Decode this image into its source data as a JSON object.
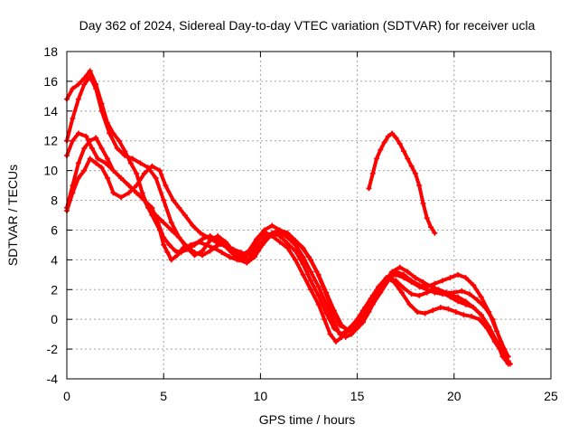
{
  "chart_data": {
    "type": "scatter",
    "title": "Day 362 of 2024, Sidereal Day-to-day VTEC variation (SDTVAR) for receiver ucla",
    "xlabel": "GPS time / hours",
    "ylabel": "SDTVAR / TECUs",
    "xlim": [
      0,
      25
    ],
    "ylim": [
      -4,
      18
    ],
    "xticks": [
      0,
      5,
      10,
      15,
      20,
      25
    ],
    "yticks": [
      -4,
      -2,
      0,
      2,
      4,
      6,
      8,
      10,
      12,
      14,
      16,
      18
    ],
    "grid": true,
    "marker": "+",
    "color": "#ff0000",
    "series": [
      {
        "name": "trace-1",
        "x": [
          0.0,
          0.3,
          0.6,
          0.9,
          1.2,
          1.5,
          1.8,
          2.1,
          2.4,
          2.8,
          3.2,
          3.6,
          4.0,
          4.4,
          4.8,
          5.0,
          5.2,
          5.4,
          5.7,
          6.0,
          6.4,
          6.8,
          7.2,
          7.6,
          8.0,
          8.4,
          8.8,
          9.2,
          9.6,
          10.0,
          10.3,
          10.6,
          11.0,
          11.4,
          11.8,
          12.2,
          12.6,
          13.0,
          13.3,
          13.6,
          13.9,
          14.2,
          14.5,
          14.8,
          15.1,
          15.4,
          15.8,
          16.2,
          16.6,
          17.0,
          17.4,
          17.8,
          18.2,
          18.6,
          19.0,
          19.4,
          19.8,
          20.2,
          20.6,
          21.0,
          21.4,
          21.8,
          22.2,
          22.5,
          22.8
        ],
        "y": [
          7.5,
          9.0,
          10.5,
          11.5,
          12.0,
          12.2,
          11.5,
          10.8,
          10.0,
          9.5,
          9.0,
          8.5,
          8.0,
          7.0,
          6.0,
          5.0,
          4.5,
          4.0,
          4.3,
          4.8,
          5.0,
          5.2,
          5.0,
          4.8,
          4.5,
          4.2,
          4.0,
          4.2,
          4.8,
          5.5,
          5.8,
          5.6,
          5.2,
          4.8,
          4.0,
          3.0,
          2.0,
          1.0,
          0.0,
          -1.0,
          -1.5,
          -1.2,
          -0.8,
          -0.5,
          0.0,
          0.5,
          1.2,
          2.0,
          2.8,
          3.0,
          2.8,
          2.5,
          2.2,
          2.0,
          1.8,
          1.7,
          1.6,
          1.5,
          1.2,
          0.8,
          0.3,
          -0.5,
          -1.5,
          -2.5,
          -3.0
        ]
      },
      {
        "name": "trace-2",
        "x": [
          0.0,
          0.3,
          0.6,
          1.0,
          1.3,
          1.6,
          2.0,
          2.4,
          2.8,
          3.2,
          3.6,
          4.0,
          4.4,
          4.7,
          5.0,
          5.3,
          5.6,
          5.9,
          6.2,
          6.6,
          7.0,
          7.4,
          7.8,
          8.2,
          8.6,
          9.0,
          9.4,
          9.8,
          10.2,
          10.6,
          11.0,
          11.4,
          11.8,
          12.2,
          12.6,
          13.0,
          13.4,
          13.8,
          14.1,
          14.4,
          14.7,
          15.0,
          15.3,
          15.6,
          16.0,
          16.4,
          16.8,
          17.2,
          17.6,
          18.0,
          18.4,
          18.8,
          19.2,
          19.6,
          20.0,
          20.4,
          20.8,
          21.2,
          21.6,
          22.0,
          22.4,
          22.8
        ],
        "y": [
          11.0,
          12.0,
          12.5,
          12.3,
          11.5,
          10.8,
          10.5,
          10.0,
          9.5,
          9.0,
          8.5,
          8.0,
          7.5,
          6.5,
          5.5,
          5.0,
          4.6,
          4.5,
          4.7,
          5.0,
          5.4,
          5.6,
          5.3,
          4.9,
          4.5,
          4.3,
          4.6,
          5.4,
          6.0,
          6.3,
          6.0,
          5.5,
          5.0,
          4.2,
          3.2,
          2.2,
          1.0,
          -0.2,
          -1.0,
          -1.2,
          -1.0,
          -0.6,
          -0.2,
          0.5,
          1.5,
          2.5,
          3.2,
          3.5,
          3.2,
          2.8,
          2.5,
          2.2,
          2.0,
          1.8,
          1.8,
          1.9,
          1.7,
          1.3,
          0.8,
          0.0,
          -1.5,
          -2.5
        ]
      },
      {
        "name": "trace-3",
        "x": [
          0.0,
          0.3,
          0.6,
          0.9,
          1.2,
          1.5,
          1.8,
          2.2,
          2.6,
          3.0,
          3.4,
          3.8,
          4.2,
          4.6,
          5.0,
          5.4,
          5.8,
          6.2,
          6.6,
          7.0,
          7.4,
          7.8,
          8.2,
          8.6,
          9.0,
          9.4,
          9.8,
          10.2,
          10.6,
          11.0,
          11.4,
          11.8,
          12.2,
          12.6,
          13.0,
          13.4,
          13.8,
          14.2,
          14.6,
          15.0,
          15.4,
          15.8,
          16.2,
          16.6,
          17.0,
          17.4,
          17.8,
          18.2,
          18.6,
          19.0,
          19.4,
          19.8,
          20.2,
          20.6,
          21.0,
          21.4,
          21.8,
          22.2,
          22.6
        ],
        "y": [
          12.0,
          13.5,
          14.8,
          15.8,
          16.3,
          15.5,
          14.0,
          12.5,
          11.5,
          11.0,
          10.8,
          10.5,
          10.2,
          9.5,
          8.0,
          6.5,
          5.5,
          4.8,
          4.3,
          4.6,
          5.3,
          5.6,
          5.2,
          4.6,
          4.2,
          4.0,
          4.6,
          5.3,
          5.8,
          6.0,
          5.8,
          5.3,
          4.8,
          4.0,
          3.0,
          1.8,
          0.6,
          -0.4,
          -0.8,
          -0.5,
          0.2,
          1.0,
          1.8,
          2.6,
          3.2,
          3.0,
          2.6,
          2.3,
          2.2,
          2.4,
          2.6,
          2.8,
          3.0,
          2.8,
          2.3,
          1.5,
          0.5,
          -0.8,
          -2.0
        ]
      },
      {
        "name": "trace-4",
        "x": [
          0.0,
          0.3,
          0.6,
          0.9,
          1.2,
          1.5,
          1.8,
          2.1,
          2.4,
          2.7,
          3.0,
          3.3,
          3.6,
          3.9,
          4.2,
          4.6,
          5.0,
          5.4,
          5.8,
          6.2,
          6.6,
          7.0,
          7.4,
          7.8,
          8.2,
          8.6,
          9.0,
          9.4,
          9.8,
          10.2,
          10.6,
          11.0,
          11.4,
          11.8,
          12.2,
          12.6,
          13.0,
          13.4,
          13.8,
          14.2,
          14.6,
          15.0,
          15.4,
          15.8,
          16.2,
          16.6,
          17.0,
          17.4,
          17.8,
          18.2,
          18.6,
          19.0,
          19.4,
          19.8,
          20.2,
          20.6,
          21.0,
          21.4,
          21.8,
          22.2,
          22.6,
          22.9
        ],
        "y": [
          14.8,
          15.5,
          15.8,
          16.2,
          16.7,
          15.8,
          14.5,
          13.2,
          12.5,
          12.0,
          11.3,
          10.5,
          9.8,
          8.5,
          7.5,
          7.0,
          6.5,
          6.0,
          5.5,
          4.9,
          4.5,
          4.3,
          4.6,
          5.0,
          5.0,
          4.7,
          4.5,
          4.3,
          4.8,
          5.4,
          5.8,
          5.6,
          5.1,
          4.6,
          3.7,
          2.6,
          1.6,
          0.4,
          -0.6,
          -1.0,
          -0.6,
          0.0,
          0.8,
          1.6,
          2.3,
          2.8,
          2.6,
          2.1,
          1.7,
          1.6,
          1.8,
          2.0,
          1.8,
          1.5,
          1.2,
          1.0,
          0.8,
          0.3,
          -0.5,
          -1.5,
          -2.5,
          -3.0
        ]
      },
      {
        "name": "trace-5",
        "x": [
          0.0,
          0.3,
          0.6,
          0.9,
          1.2,
          1.5,
          1.8,
          2.1,
          2.4,
          2.8,
          3.2,
          3.6,
          4.0,
          4.4,
          4.8,
          5.1,
          5.5,
          5.8,
          6.1,
          6.5,
          6.9,
          7.3,
          7.7,
          8.1,
          8.5,
          8.9,
          9.3,
          9.7,
          10.1,
          10.5,
          10.9,
          11.3,
          11.7,
          12.1,
          12.5,
          12.9,
          13.3,
          13.7,
          14.1,
          14.5,
          14.9,
          15.3,
          15.7,
          16.1,
          16.5,
          16.9,
          17.3,
          17.7,
          18.1,
          18.5,
          18.9,
          19.3,
          19.7,
          20.1,
          20.5,
          20.9,
          21.3,
          21.7,
          22.1,
          22.5,
          22.8
        ],
        "y": [
          7.3,
          8.5,
          9.5,
          10.0,
          10.8,
          10.5,
          10.2,
          9.5,
          8.5,
          8.2,
          8.5,
          9.0,
          9.8,
          10.3,
          10.0,
          9.0,
          8.0,
          7.5,
          7.0,
          6.3,
          5.8,
          5.5,
          5.2,
          5.0,
          4.5,
          4.0,
          3.8,
          4.2,
          5.0,
          5.6,
          5.8,
          5.6,
          5.2,
          4.9,
          4.2,
          3.2,
          2.0,
          0.6,
          -0.4,
          -0.7,
          -0.2,
          0.6,
          1.4,
          2.2,
          2.8,
          2.5,
          1.8,
          1.0,
          0.5,
          0.4,
          0.6,
          0.8,
          0.7,
          0.5,
          0.3,
          0.2,
          0.0,
          -0.6,
          -1.5,
          -2.3,
          -2.8
        ]
      },
      {
        "name": "trace-6",
        "x": [
          15.6,
          15.8,
          16.0,
          16.2,
          16.4,
          16.6,
          16.8,
          17.0,
          17.2,
          17.4,
          17.6,
          17.8,
          18.0,
          18.2,
          18.4,
          18.6,
          18.8,
          19.0
        ],
        "y": [
          8.8,
          9.8,
          10.8,
          11.4,
          11.9,
          12.3,
          12.5,
          12.2,
          11.8,
          11.3,
          10.8,
          10.3,
          9.8,
          9.0,
          7.8,
          6.8,
          6.2,
          5.8
        ]
      }
    ]
  }
}
